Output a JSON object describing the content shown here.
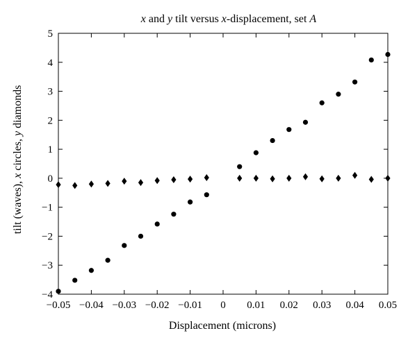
{
  "chart_data": {
    "type": "scatter",
    "title": "x and y tilt versus x-displacement, set A",
    "title_parts": [
      "x",
      " and ",
      "y",
      " tilt versus ",
      "x",
      "-displacement, set ",
      "A"
    ],
    "xlabel": "Displacement (microns)",
    "ylabel": "tilt (waves), x circles, y diamonds",
    "ylabel_parts": [
      "tilt (waves), ",
      "x",
      " circles, ",
      "y",
      " diamonds"
    ],
    "xlim": [
      -0.05,
      0.05
    ],
    "ylim": [
      -4,
      5
    ],
    "xticks": [
      -0.05,
      -0.04,
      -0.03,
      -0.02,
      -0.01,
      0,
      0.01,
      0.02,
      0.03,
      0.04,
      0.05
    ],
    "xtick_labels": [
      "−0.05",
      "−0.04",
      "−0.03",
      "−0.02",
      "−0.01",
      "0",
      "0.01",
      "0.02",
      "0.03",
      "0.04",
      "0.05"
    ],
    "yticks": [
      -4,
      -3,
      -2,
      -1,
      0,
      1,
      2,
      3,
      4,
      5
    ],
    "ytick_labels": [
      "−4",
      "−3",
      "−2",
      "−1",
      "0",
      "1",
      "2",
      "3",
      "4",
      "5"
    ],
    "grid": false,
    "series": [
      {
        "marker": "circle",
        "x": [
          -0.05,
          -0.045,
          -0.04,
          -0.035,
          -0.03,
          -0.025,
          -0.02,
          -0.015,
          -0.01,
          -0.005,
          0.005,
          0.01,
          0.015,
          0.02,
          0.025,
          0.03,
          0.035,
          0.04,
          0.045,
          0.05
        ],
        "y": [
          -3.9,
          -3.52,
          -3.18,
          -2.83,
          -2.32,
          -2.0,
          -1.58,
          -1.24,
          -0.82,
          -0.57,
          0.4,
          0.88,
          1.3,
          1.68,
          1.93,
          2.6,
          2.9,
          3.32,
          4.08,
          4.27
        ]
      },
      {
        "marker": "diamond",
        "x": [
          -0.05,
          -0.045,
          -0.04,
          -0.035,
          -0.03,
          -0.025,
          -0.02,
          -0.015,
          -0.01,
          -0.005,
          0.005,
          0.01,
          0.015,
          0.02,
          0.025,
          0.03,
          0.035,
          0.04,
          0.045,
          0.05
        ],
        "y": [
          -0.22,
          -0.25,
          -0.2,
          -0.18,
          -0.1,
          -0.15,
          -0.08,
          -0.05,
          -0.03,
          0.02,
          0.0,
          0.0,
          -0.02,
          0.0,
          0.05,
          -0.02,
          0.0,
          0.1,
          -0.04,
          0.0
        ]
      }
    ],
    "colors": {
      "marker": "#000000",
      "axes": "#000000",
      "background": "#ffffff"
    }
  }
}
